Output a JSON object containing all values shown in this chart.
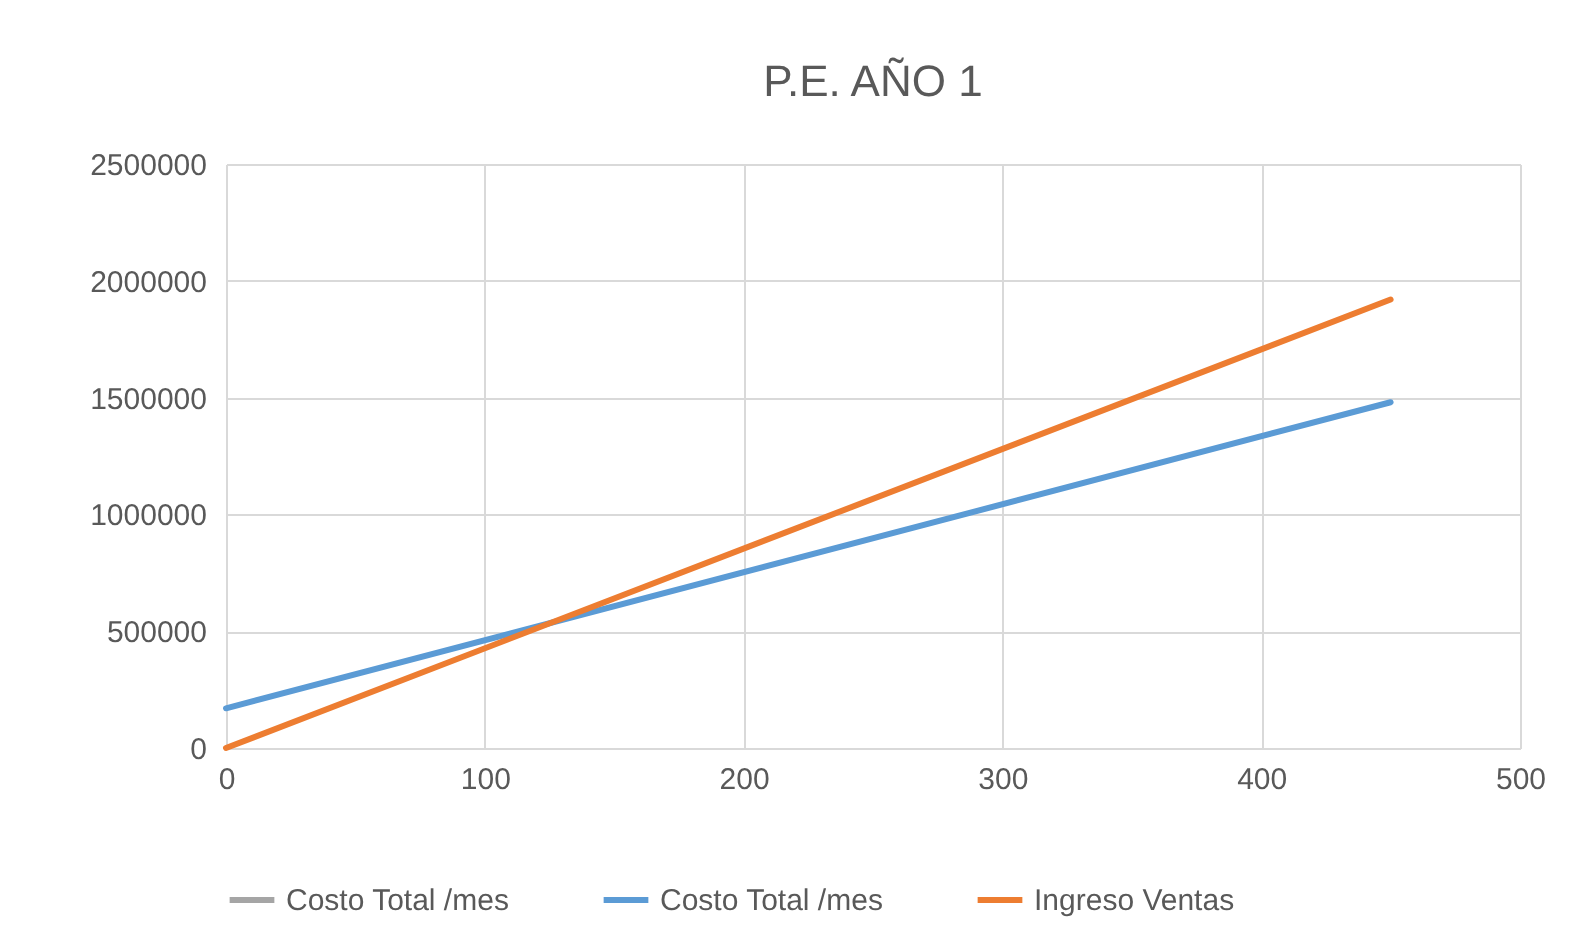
{
  "chart_data": {
    "type": "line",
    "title": "P.E. AÑO 1",
    "x": [
      0,
      450
    ],
    "series": [
      {
        "name": "Costo Total /mes",
        "color": "#a5a5a5",
        "values": [
          null,
          null
        ]
      },
      {
        "name": "Costo Total /mes",
        "color": "#5b9bd5",
        "values": [
          170000,
          1480000
        ]
      },
      {
        "name": "Ingreso Ventas",
        "color": "#ed7d31",
        "values": [
          0,
          1920000
        ]
      }
    ],
    "xlim": [
      0,
      500
    ],
    "xticks": [
      0,
      100,
      200,
      300,
      400,
      500
    ],
    "ylim": [
      0,
      2500000
    ],
    "yticks": [
      0,
      500000,
      1000000,
      1500000,
      2000000,
      2500000
    ],
    "grid": true,
    "legend": "bottom",
    "marker": "none",
    "line_style": "solid"
  }
}
